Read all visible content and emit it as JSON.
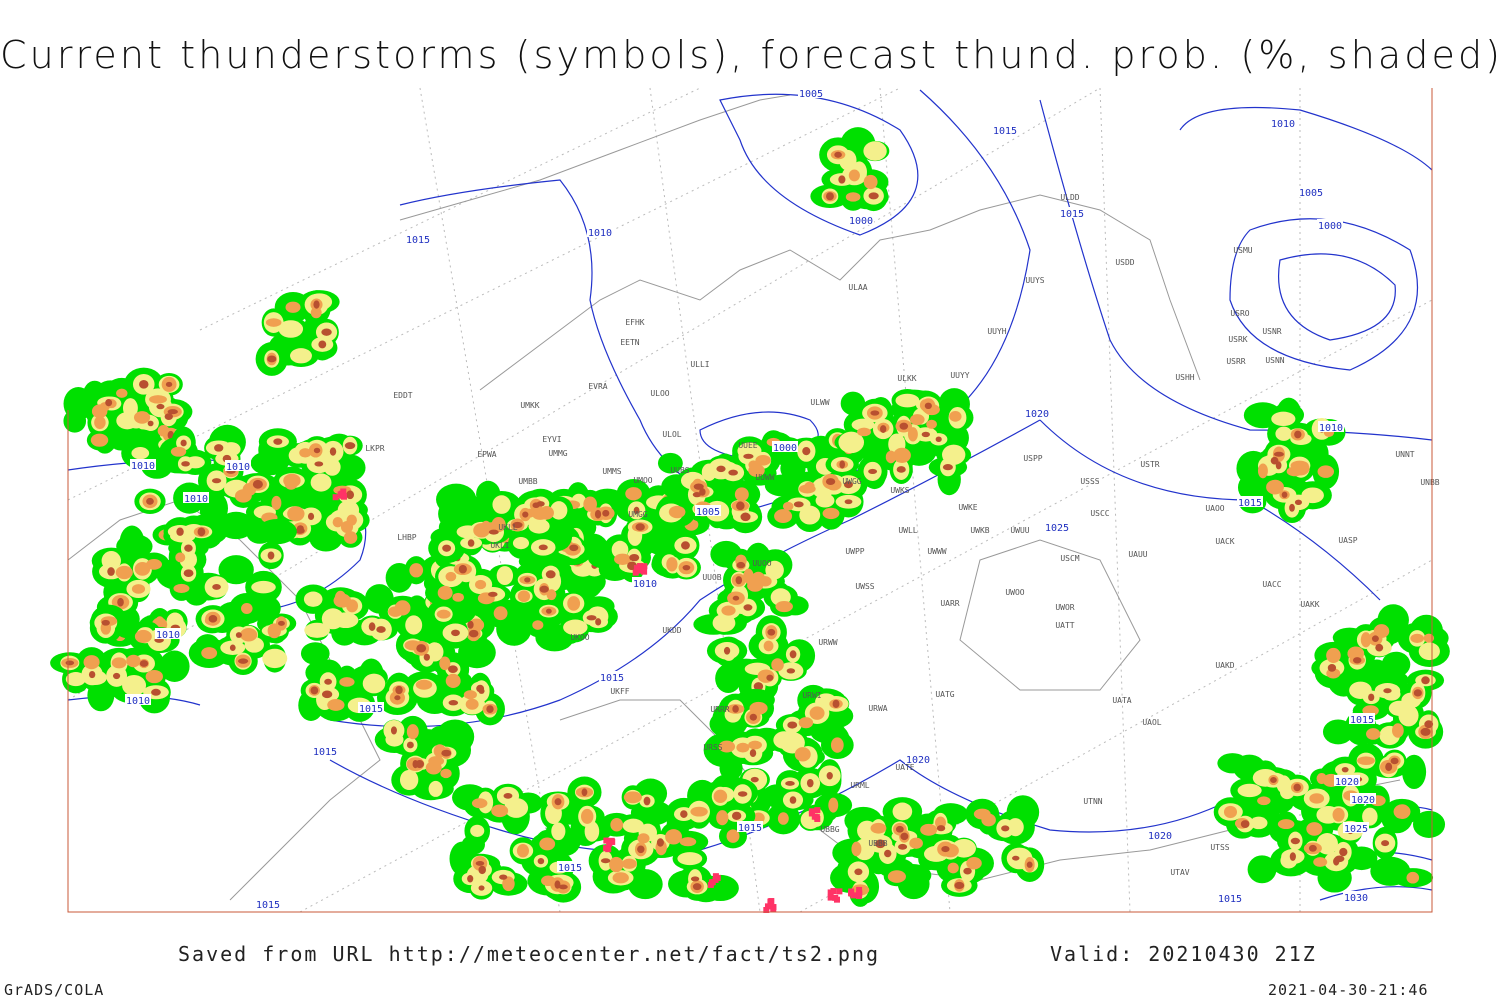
{
  "title": "Current thunderstorms (symbols), forecast thund. prob. (%, shaded)",
  "footer": {
    "source": "Saved from URL http://meteocenter.net/fact/ts2.png",
    "valid": "Valid: 20210430 21Z",
    "software": "GrADS/COLA",
    "timestamp": "2021-04-30-21:46"
  },
  "isobar_labels": [
    1005,
    1015,
    1010,
    1015,
    1010,
    1000,
    1015,
    1005,
    1000,
    1000,
    1010,
    1010,
    1010,
    1005,
    1020,
    1025,
    1010,
    1010,
    1015,
    1010,
    1010,
    1015,
    1015,
    1015,
    1020,
    1015,
    1015,
    1015,
    1020,
    1015,
    1020,
    1020,
    1025,
    1030,
    1015
  ],
  "stations": [
    "ULDD",
    "USDD",
    "USMU",
    "UUYS",
    "ULAA",
    "EFHK",
    "EETN",
    "UUYH",
    "USRO",
    "USNR",
    "USRK",
    "USRR",
    "USNN",
    "ULLI",
    "EVRA",
    "ULOO",
    "ULKK",
    "UUYY",
    "USHH",
    "EDDT",
    "UMKK",
    "ULWW",
    "ULOL",
    "EYVI",
    "UMMG",
    "EPWA",
    "LKPR",
    "UUEE",
    "USPP",
    "USTR",
    "UMMS",
    "UMOO",
    "UUBS",
    "UUWW",
    "UWGG",
    "UWKS",
    "USSS",
    "UNBB",
    "UMBB",
    "UNNT",
    "UWKE",
    "UAOO",
    "USCC",
    "UKLL",
    "UMGG",
    "UWKB",
    "UWUU",
    "UWLL",
    "LHBP",
    "UKLI",
    "UACK",
    "UASP",
    "UWWW",
    "UWPP",
    "USCM",
    "UAUU",
    "UUOO",
    "UUOB",
    "UWSS",
    "UACC",
    "UAKK",
    "UARR",
    "UWOO",
    "UWOR",
    "UKDD",
    "URWW",
    "UATT",
    "UKOO",
    "UAKD",
    "UKFF",
    "URRR",
    "URWI",
    "UATG",
    "UATA",
    "URWA",
    "UAOL",
    "URSS",
    "UATE",
    "URML",
    "UTNN",
    "UBBG",
    "UBBB",
    "UTSS",
    "UTAV"
  ]
}
